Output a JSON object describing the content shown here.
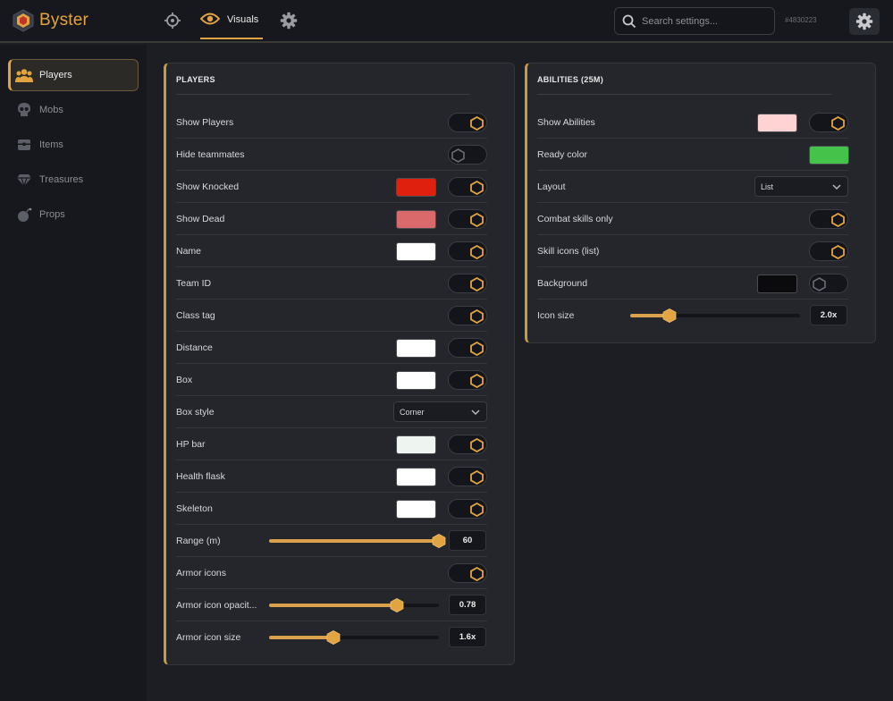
{
  "app": {
    "name": "Byster",
    "user_id": "#4830223"
  },
  "header": {
    "nav": [
      {
        "icon": "crosshair-icon",
        "label": ""
      },
      {
        "icon": "eye-icon",
        "label": "Visuals",
        "active": true
      },
      {
        "icon": "gear-icon",
        "label": ""
      }
    ],
    "search_placeholder": "Search settings..."
  },
  "colors": {
    "accent": "#e2a441",
    "panel": "#24262c",
    "background": "#1c1e24"
  },
  "sidebar": {
    "items": [
      {
        "label": "Players",
        "icon": "players-icon",
        "active": true
      },
      {
        "label": "Mobs",
        "icon": "skull-icon"
      },
      {
        "label": "Items",
        "icon": "chest-icon"
      },
      {
        "label": "Treasures",
        "icon": "gem-icon"
      },
      {
        "label": "Props",
        "icon": "bomb-icon"
      }
    ]
  },
  "players": {
    "title": "PLAYERS",
    "rows": [
      {
        "label": "Show Players",
        "toggle": true
      },
      {
        "label": "Hide teammates",
        "toggle": false
      },
      {
        "label": "Show Knocked",
        "color": "#e0200f",
        "toggle": true
      },
      {
        "label": "Show Dead",
        "color": "#d9696a",
        "toggle": true
      },
      {
        "label": "Name",
        "color": "#ffffff",
        "toggle": true
      },
      {
        "label": "Team ID",
        "toggle": true
      },
      {
        "label": "Class tag",
        "toggle": true
      },
      {
        "label": "Distance",
        "color": "#ffffff",
        "toggle": true
      },
      {
        "label": "Box",
        "color": "#ffffff",
        "toggle": true
      },
      {
        "label": "Box style",
        "select": "Corner"
      },
      {
        "label": "HP bar",
        "color": "#eef4ef",
        "toggle": true
      },
      {
        "label": "Health flask",
        "color": "#ffffff",
        "toggle": true
      },
      {
        "label": "Skeleton",
        "color": "#ffffff",
        "toggle": true
      },
      {
        "label": "Range (m)",
        "slider": 1.0,
        "value": "60"
      },
      {
        "label": "Armor icons",
        "toggle": true
      },
      {
        "label": "Armor icon opacit...",
        "slider": 0.75,
        "value": "0.78"
      },
      {
        "label": "Armor icon size",
        "slider": 0.38,
        "value": "1.6x"
      }
    ]
  },
  "abilities": {
    "title": "ABILITIES (25M)",
    "rows": [
      {
        "label": "Show Abilities",
        "color": "#ffd3d3",
        "toggle": true
      },
      {
        "label": "Ready color",
        "color": "#44c24a"
      },
      {
        "label": "Layout",
        "select": "List"
      },
      {
        "label": "Combat skills only",
        "toggle": true
      },
      {
        "label": "Skill icons (list)",
        "toggle": true
      },
      {
        "label": "Background",
        "color": "#0b0b0d",
        "toggle": false
      },
      {
        "label": "Icon size",
        "slider": 0.23,
        "value": "2.0x"
      }
    ]
  }
}
